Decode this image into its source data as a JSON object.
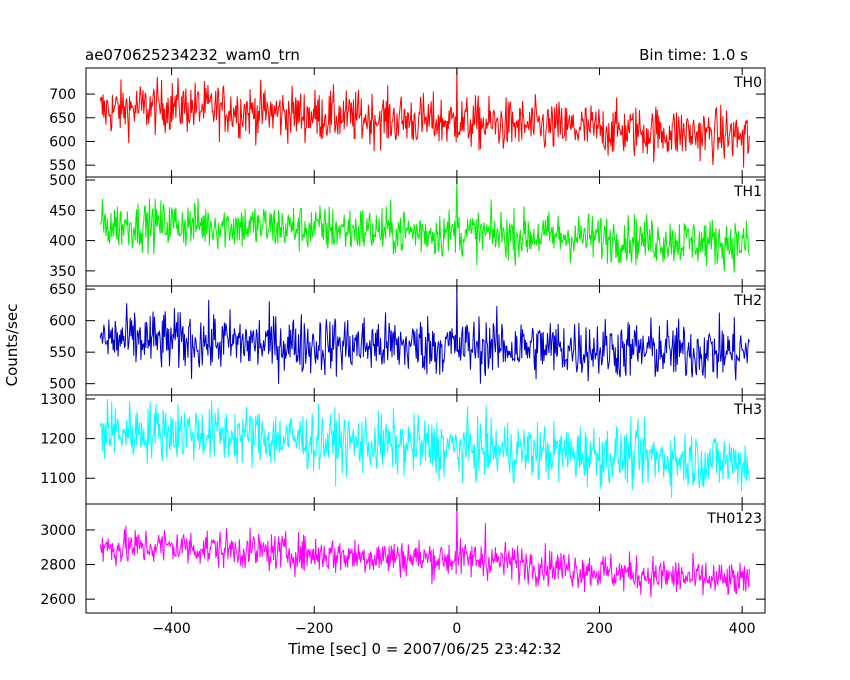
{
  "header": {
    "title": "ae070625234232_wam0_trn",
    "bin_time": "Bin time: 1.0 s"
  },
  "ylabel": "Counts/sec",
  "xlabel": "Time [sec] 0 = 2007/06/25 23:42:32",
  "chart_data": {
    "type": "line",
    "title": "ae070625234232_wam0_trn",
    "xlabel": "Time [sec] 0 = 2007/06/25 23:42:32",
    "ylabel": "Counts/sec",
    "xlim": [
      -520,
      432
    ],
    "x_ticks": [
      -400,
      -200,
      0,
      200,
      400
    ],
    "x_range": [
      -500,
      410
    ],
    "grid": false,
    "legend": "none",
    "panels": [
      {
        "name": "TH0",
        "color": "#ff0000",
        "ylim": [
          525,
          755
        ],
        "y_ticks": [
          550,
          600,
          650,
          700
        ],
        "trend": {
          "x": [
            -500,
            -400,
            -200,
            0,
            200,
            400,
            410
          ],
          "y": [
            665,
            675,
            655,
            640,
            625,
            612,
            610
          ]
        },
        "noise_sd": 28,
        "spikes": [
          {
            "x": 0,
            "y": 755
          },
          {
            "x": 402,
            "y": 545
          }
        ]
      },
      {
        "name": "TH1",
        "color": "#00ee00",
        "ylim": [
          325,
          505
        ],
        "y_ticks": [
          350,
          400,
          450,
          500
        ],
        "trend": {
          "x": [
            -500,
            -400,
            -200,
            0,
            200,
            400,
            410
          ],
          "y": [
            425,
            428,
            420,
            412,
            405,
            395,
            392
          ]
        },
        "noise_sd": 20,
        "spikes": [
          {
            "x": 0,
            "y": 500
          }
        ]
      },
      {
        "name": "TH2",
        "color": "#0000cc",
        "ylim": [
          482,
          655
        ],
        "y_ticks": [
          500,
          550,
          600,
          650
        ],
        "trend": {
          "x": [
            -500,
            -400,
            -200,
            0,
            200,
            400,
            410
          ],
          "y": [
            570,
            568,
            562,
            560,
            555,
            550,
            548
          ]
        },
        "noise_sd": 24,
        "spikes": [
          {
            "x": 0,
            "y": 655
          }
        ]
      },
      {
        "name": "TH3",
        "color": "#00ffff",
        "ylim": [
          1035,
          1310
        ],
        "y_ticks": [
          1100,
          1200,
          1300
        ],
        "trend": {
          "x": [
            -500,
            -400,
            -200,
            0,
            200,
            400,
            410
          ],
          "y": [
            1215,
            1220,
            1195,
            1175,
            1160,
            1140,
            1135
          ]
        },
        "noise_sd": 38,
        "spikes": [
          {
            "x": -490,
            "y": 1300
          }
        ]
      },
      {
        "name": "TH0123",
        "color": "#ff00ff",
        "ylim": [
          2520,
          3150
        ],
        "y_ticks": [
          2600,
          2800,
          3000
        ],
        "trend": {
          "x": [
            -500,
            -400,
            -200,
            0,
            40,
            200,
            400,
            410
          ],
          "y": [
            2895,
            2905,
            2860,
            2830,
            2830,
            2760,
            2700,
            2690
          ]
        },
        "noise_sd": 55,
        "spikes": [
          {
            "x": 0,
            "y": 3150
          },
          {
            "x": 40,
            "y": 3040
          }
        ]
      }
    ]
  }
}
